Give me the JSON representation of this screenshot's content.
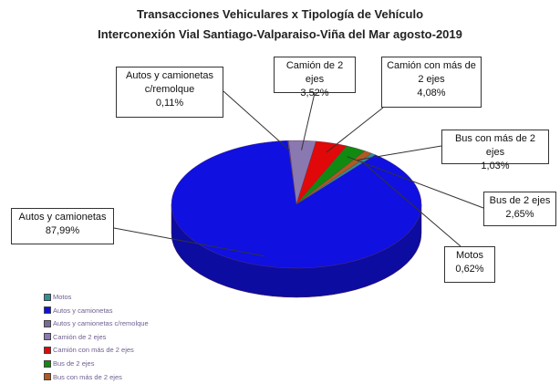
{
  "chart_data": {
    "type": "pie",
    "title": "Transacciones Vehiculares x Tipología de Vehículo",
    "subtitle": "Interconexión Vial Santiago-Valparaiso-Viña del Mar agosto-2019",
    "categories": [
      "Motos",
      "Autos y camionetas",
      "Autos y camionetas c/remolque",
      "Camión de 2 ejes",
      "Camión con más de 2 ejes",
      "Bus de 2 ejes",
      "Bus con más de 2 ejes"
    ],
    "values": [
      0.62,
      87.99,
      0.11,
      3.52,
      4.08,
      2.65,
      1.03
    ],
    "value_labels": [
      "0,62%",
      "87,99%",
      "0,11%",
      "3,52%",
      "4,08%",
      "2,65%",
      "1,03%"
    ],
    "colors": [
      "#2f8f9a",
      "#1010e0",
      "#7a6a9a",
      "#8a78b0",
      "#e00808",
      "#118a11",
      "#b05a20"
    ],
    "legend": "bottom-left"
  }
}
